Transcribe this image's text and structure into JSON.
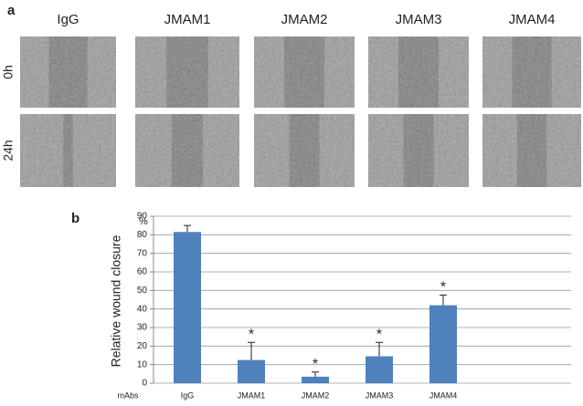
{
  "panel_a": {
    "label": "a",
    "columns": [
      "IgG",
      "JMAM1",
      "JMAM2",
      "JMAM3",
      "JMAM4"
    ],
    "rows": [
      "0h",
      "24h"
    ]
  },
  "chart_data": {
    "type": "bar",
    "panel_label": "b",
    "y_label": "Relative wound closure",
    "y_unit": "%",
    "x_label": "mAbs",
    "categories": [
      "IgG",
      "JMAM1",
      "JMAM2",
      "JMAM3",
      "JMAM4"
    ],
    "values": [
      81.5,
      12.5,
      3.5,
      14.5,
      42
    ],
    "errors": [
      3.5,
      9.5,
      2.5,
      7.5,
      5.5
    ],
    "significance": [
      null,
      "*",
      "*",
      "*",
      "*"
    ],
    "color": "#4f81bd",
    "ylim": [
      0,
      90
    ],
    "yticks": [
      0,
      10,
      20,
      30,
      40,
      50,
      60,
      70,
      80,
      90
    ],
    "grid": true
  }
}
